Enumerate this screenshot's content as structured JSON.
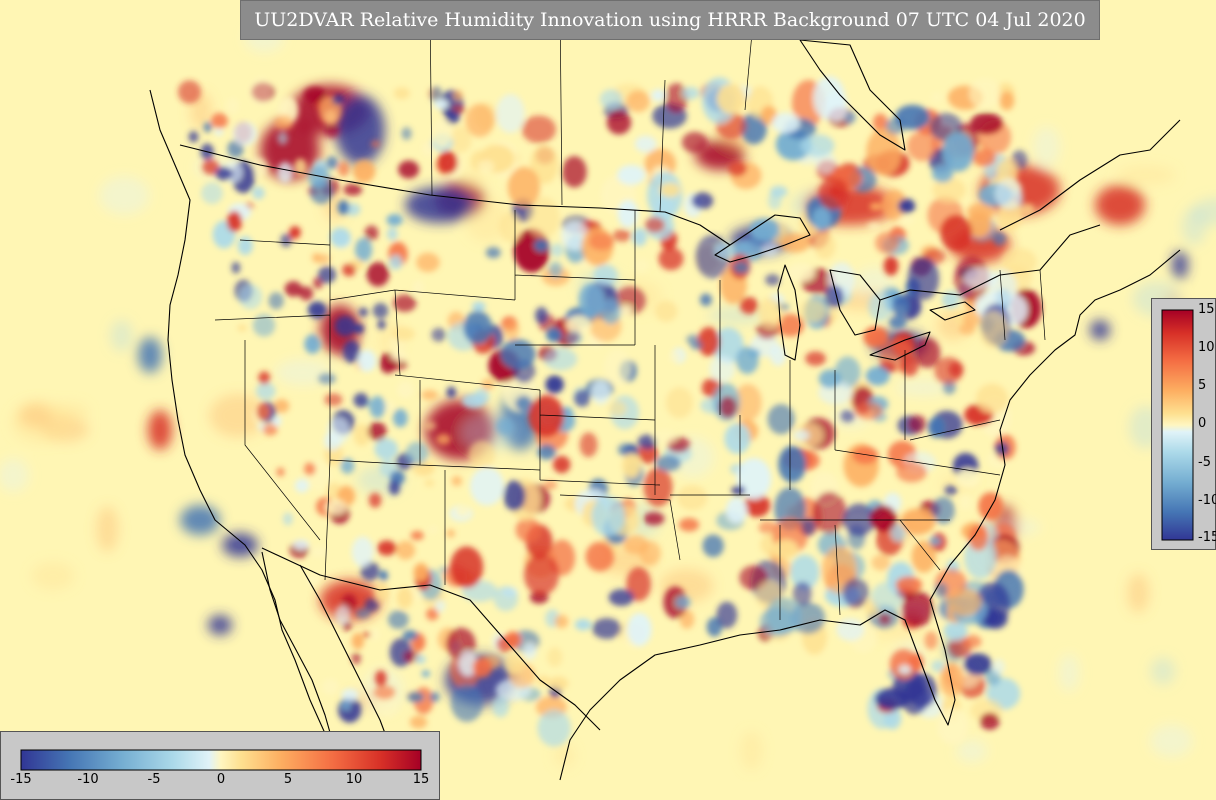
{
  "title": "UU2DVAR Relative Humidity Innovation using HRRR Background 07 UTC 04 Jul 2020",
  "colors": {
    "background": "#fff6b4",
    "title_bg": "#8c8c8c",
    "panel_bg": "#c8c8c8",
    "boundary": "#000000",
    "colormap": [
      "#313695",
      "#4575b4",
      "#74add1",
      "#abd9e9",
      "#e0f3f8",
      "#fff6c0",
      "#fee090",
      "#fdae61",
      "#f46d43",
      "#d73027",
      "#a50026"
    ]
  },
  "colorbar_horizontal": {
    "ticks": [
      "-15",
      "-10",
      "-5",
      "0",
      "5",
      "10",
      "15"
    ],
    "range": [
      -15,
      15
    ]
  },
  "colorbar_vertical": {
    "ticks": [
      "15",
      "10",
      "5",
      "0",
      "-5",
      "-10",
      "-15"
    ],
    "range": [
      -15,
      15
    ]
  }
}
